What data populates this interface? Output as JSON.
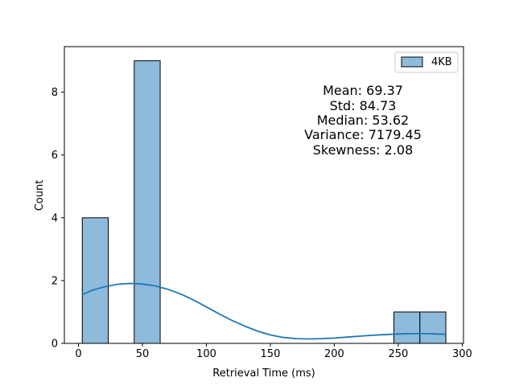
{
  "chart_data": {
    "type": "bar",
    "subtype": "histogram-with-kde",
    "xlabel": "Retrieval Time (ms)",
    "ylabel": "Count",
    "xlim": [
      -11,
      301
    ],
    "ylim": [
      0,
      9.45
    ],
    "x_ticks": [
      0,
      50,
      100,
      150,
      200,
      250,
      300
    ],
    "y_ticks": [
      0,
      2,
      4,
      6,
      8
    ],
    "grid": false,
    "legend_position": "top-right",
    "series": [
      {
        "name": "4KB",
        "color": "#8ebbdc",
        "edge_color": "#000000",
        "bins": [
          {
            "x0": 3.0,
            "x1": 23.3,
            "count": 4
          },
          {
            "x0": 23.3,
            "x1": 43.6,
            "count": 0
          },
          {
            "x0": 43.6,
            "x1": 63.9,
            "count": 9
          },
          {
            "x0": 63.9,
            "x1": 84.2,
            "count": 0
          },
          {
            "x0": 84.2,
            "x1": 104.5,
            "count": 0
          },
          {
            "x0": 104.5,
            "x1": 124.8,
            "count": 0
          },
          {
            "x0": 124.8,
            "x1": 145.1,
            "count": 0
          },
          {
            "x0": 145.1,
            "x1": 165.4,
            "count": 0
          },
          {
            "x0": 165.4,
            "x1": 185.7,
            "count": 0
          },
          {
            "x0": 185.7,
            "x1": 206.0,
            "count": 0
          },
          {
            "x0": 206.0,
            "x1": 226.3,
            "count": 0
          },
          {
            "x0": 226.3,
            "x1": 246.6,
            "count": 0
          },
          {
            "x0": 246.6,
            "x1": 266.9,
            "count": 1
          },
          {
            "x0": 266.9,
            "x1": 287.2,
            "count": 1
          }
        ],
        "kde": {
          "color": "#1f77b4",
          "x": [
            3,
            10,
            20,
            30,
            40,
            50,
            60,
            70,
            80,
            90,
            100,
            110,
            120,
            130,
            140,
            150,
            160,
            170,
            180,
            190,
            200,
            210,
            220,
            230,
            240,
            250,
            260,
            270,
            280,
            287
          ],
          "y": [
            1.55,
            1.68,
            1.8,
            1.88,
            1.91,
            1.89,
            1.83,
            1.72,
            1.57,
            1.38,
            1.16,
            0.94,
            0.73,
            0.55,
            0.39,
            0.27,
            0.19,
            0.15,
            0.14,
            0.15,
            0.17,
            0.2,
            0.23,
            0.26,
            0.28,
            0.3,
            0.31,
            0.31,
            0.3,
            0.29
          ]
        }
      }
    ],
    "annotation_lines": [
      "Mean: 69.37",
      "Std: 84.73",
      "Median: 53.62",
      "Variance: 7179.45",
      "Skewness: 2.08"
    ]
  }
}
